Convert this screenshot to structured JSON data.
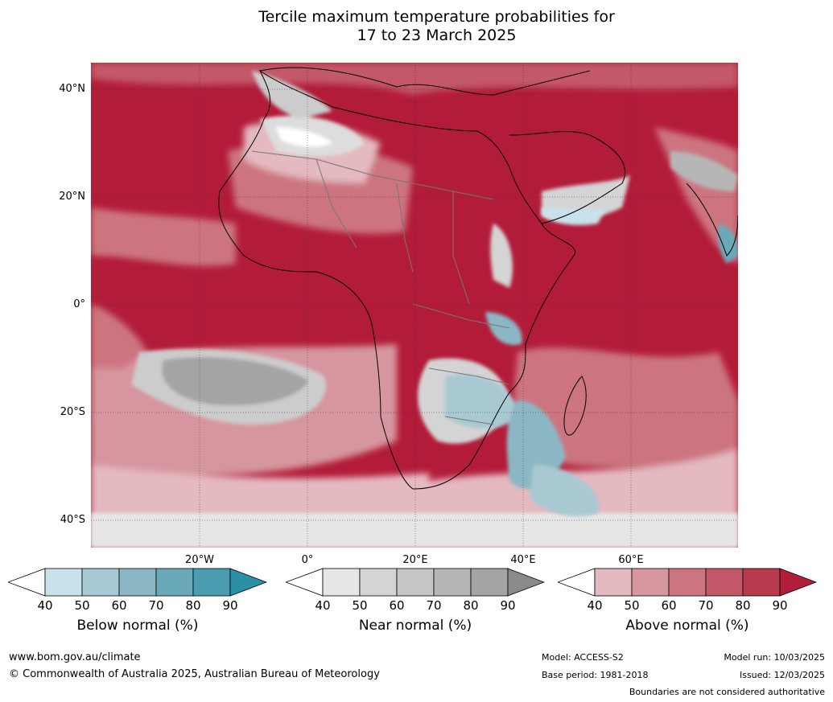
{
  "title": {
    "line1": "Tercile maximum temperature probabilities for",
    "line2": "17 to 23 March 2025"
  },
  "map": {
    "lat_labels": [
      "40°N",
      "20°N",
      "0°",
      "20°S",
      "40°S"
    ],
    "lon_labels": [
      "20°W",
      "0°",
      "20°E",
      "40°E",
      "60°E"
    ]
  },
  "colorbars": [
    {
      "title": "Below normal (%)",
      "ticks": [
        "40",
        "50",
        "60",
        "70",
        "80",
        "90"
      ],
      "colors": [
        "#ffffff",
        "#c9e2ea",
        "#a9c9d2",
        "#8bb7c4",
        "#6aaab8",
        "#4a9db0",
        "#2b8fa6"
      ]
    },
    {
      "title": "Near normal (%)",
      "ticks": [
        "40",
        "50",
        "60",
        "70",
        "80",
        "90"
      ],
      "colors": [
        "#ffffff",
        "#e6e6e6",
        "#d4d4d4",
        "#c6c6c6",
        "#b6b6b6",
        "#a4a4a4",
        "#8a8a8a"
      ]
    },
    {
      "title": "Above normal (%)",
      "ticks": [
        "40",
        "50",
        "60",
        "70",
        "80",
        "90"
      ],
      "colors": [
        "#ffffff",
        "#e4b9c0",
        "#d6969f",
        "#cc7480",
        "#c25867",
        "#b83a4d",
        "#b01e3a"
      ]
    }
  ],
  "footer": {
    "website": "www.bom.gov.au/climate",
    "copyright": "© Commonwealth of Australia 2025, Australian Bureau of Meteorology",
    "model": "Model: ACCESS-S2",
    "base_period": "Base period: 1981-2018",
    "model_run": "Model run: 10/03/2025",
    "issued": "Issued: 12/03/2025",
    "disclaimer": "Boundaries are not considered authoritative"
  }
}
